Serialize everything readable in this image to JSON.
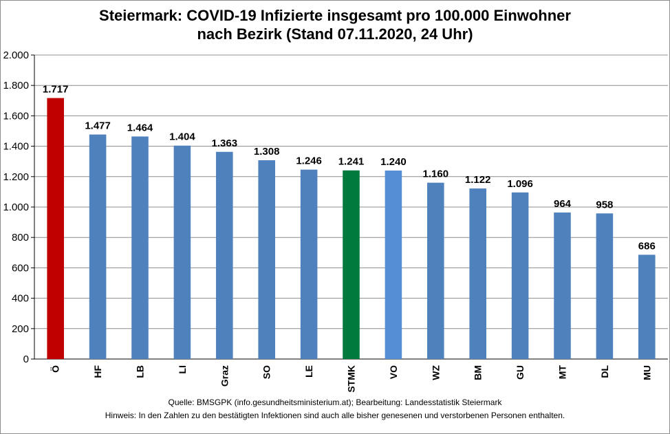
{
  "chart_data": {
    "type": "bar",
    "title_line1": "Steiermark:  COVID-19 Infizierte insgesamt pro 100.000 Einwohner",
    "title_line2": "nach Bezirk (Stand 07.11.2020, 24 Uhr)",
    "categories": [
      "Ö",
      "HF",
      "LB",
      "LI",
      "Graz",
      "SO",
      "LE",
      "STMK",
      "VO",
      "WZ",
      "BM",
      "GU",
      "MT",
      "DL",
      "MU"
    ],
    "values": [
      1717,
      1477,
      1464,
      1404,
      1363,
      1308,
      1246,
      1241,
      1240,
      1160,
      1122,
      1096,
      964,
      958,
      686
    ],
    "value_labels": [
      "1.717",
      "1.477",
      "1.464",
      "1.404",
      "1.363",
      "1.308",
      "1.246",
      "1.241",
      "1.240",
      "1.160",
      "1.122",
      "1.096",
      "964",
      "958",
      "686"
    ],
    "bar_colors": [
      "#c00000",
      "#4f81bd",
      "#4f81bd",
      "#4f81bd",
      "#4f81bd",
      "#4f81bd",
      "#4f81bd",
      "#007a3d",
      "#558ed5",
      "#4f81bd",
      "#4f81bd",
      "#4f81bd",
      "#4f81bd",
      "#4f81bd",
      "#4f81bd"
    ],
    "ylim": [
      0,
      2000
    ],
    "yticks": [
      0,
      200,
      400,
      600,
      800,
      1000,
      1200,
      1400,
      1600,
      1800,
      2000
    ],
    "ytick_labels": [
      "0",
      "200",
      "400",
      "600",
      "800",
      "1.000",
      "1.200",
      "1.400",
      "1.600",
      "1.800",
      "2.000"
    ],
    "grid": true,
    "legend": "none",
    "xlabel": "",
    "ylabel": ""
  },
  "footer": {
    "source": "Quelle: BMSGPK (info.gesundheitsministerium.at); Bearbeitung: Landesstatistik Steiermark",
    "note": "Hinweis: In den Zahlen zu den bestätigten Infektionen sind auch alle bisher genesenen und verstorbenen Personen enthalten."
  }
}
